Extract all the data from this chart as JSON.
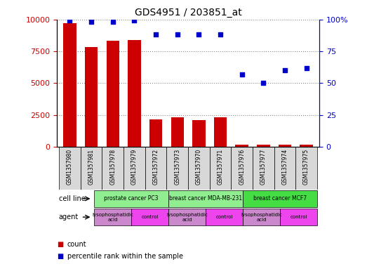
{
  "title": "GDS4951 / 203851_at",
  "samples": [
    "GSM1357980",
    "GSM1357981",
    "GSM1357978",
    "GSM1357979",
    "GSM1357972",
    "GSM1357973",
    "GSM1357970",
    "GSM1357971",
    "GSM1357976",
    "GSM1357977",
    "GSM1357974",
    "GSM1357975"
  ],
  "counts": [
    9700,
    7800,
    8300,
    8400,
    2150,
    2350,
    2100,
    2350,
    200,
    150,
    150,
    200
  ],
  "percentiles": [
    99,
    98,
    98,
    99,
    88,
    88,
    88,
    88,
    57,
    50,
    60,
    62
  ],
  "cell_lines": [
    {
      "label": "prostate cancer PC3",
      "start": 0,
      "end": 4,
      "color": "#90ee90"
    },
    {
      "label": "breast cancer MDA-MB-231",
      "start": 4,
      "end": 8,
      "color": "#90ee90"
    },
    {
      "label": "breast cancer MCF7",
      "start": 8,
      "end": 12,
      "color": "#44dd44"
    }
  ],
  "agents": [
    {
      "label": "lysophosphatidic\nacid",
      "start": 0,
      "end": 2,
      "color": "#cc88cc"
    },
    {
      "label": "control",
      "start": 2,
      "end": 4,
      "color": "#ee44ee"
    },
    {
      "label": "lysophosphatidic\nacid",
      "start": 4,
      "end": 6,
      "color": "#cc88cc"
    },
    {
      "label": "control",
      "start": 6,
      "end": 8,
      "color": "#ee44ee"
    },
    {
      "label": "lysophosphatidic\nacid",
      "start": 8,
      "end": 10,
      "color": "#cc88cc"
    },
    {
      "label": "control",
      "start": 10,
      "end": 12,
      "color": "#ee44ee"
    }
  ],
  "bar_color": "#cc0000",
  "dot_color": "#0000cc",
  "ylim_left": [
    0,
    10000
  ],
  "ylim_right": [
    0,
    100
  ],
  "yticks_left": [
    0,
    2500,
    5000,
    7500,
    10000
  ],
  "yticks_right": [
    0,
    25,
    50,
    75,
    100
  ],
  "ytick_labels_left": [
    "0",
    "2500",
    "5000",
    "7500",
    "10000"
  ],
  "ytick_labels_right": [
    "0",
    "25",
    "50",
    "75",
    "100%"
  ],
  "grid_color": "#888888",
  "background_color": "#ffffff",
  "left_label_color": "#cc0000",
  "right_label_color": "#0000cc",
  "cell_line_label": "cell line",
  "agent_label": "agent",
  "legend_count": "count",
  "legend_percentile": "percentile rank within the sample",
  "sample_bg_color": "#d8d8d8",
  "border_color": "#000000"
}
